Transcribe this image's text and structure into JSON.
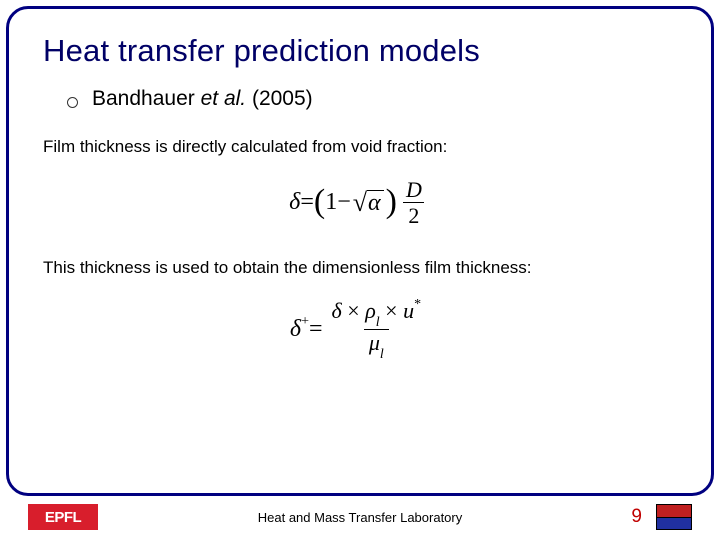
{
  "title": "Heat transfer prediction models",
  "bullet": {
    "author": "Bandhauer ",
    "etal": "et al.",
    "year": " (2005)"
  },
  "text1": "Film thickness is directly calculated from void fraction:",
  "text2": "This thickness is used to obtain the dimensionless film thickness:",
  "eq1": {
    "lhs": "δ",
    "eq": " = ",
    "one": "1",
    "minus": " − ",
    "sqrt_arg": "α",
    "frac_num": "D",
    "frac_den": "2"
  },
  "eq2": {
    "lhs": "δ",
    "lhs_sup": "+",
    "eq": " = ",
    "num_a": "δ",
    "times1": " × ",
    "num_b": "ρ",
    "num_b_sub": "l",
    "times2": " × ",
    "num_c": "u",
    "num_c_sup": "*",
    "den_a": "μ",
    "den_a_sub": "l"
  },
  "footer": {
    "lab": "Heat and Mass Transfer Laboratory",
    "page": "9",
    "logo_left": "EPFL"
  },
  "colors": {
    "frame_border": "#000080",
    "title_color": "#000066",
    "page_color": "#c00000",
    "logo_left_bg": "#d81e2c"
  }
}
